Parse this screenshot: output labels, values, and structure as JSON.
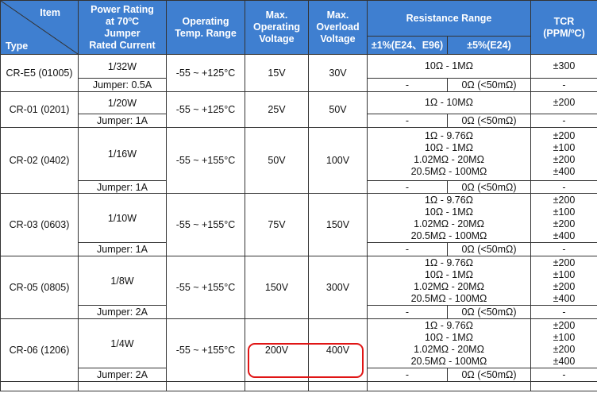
{
  "headers": {
    "item": "Item",
    "type": "Type",
    "power": [
      "Power Rating",
      "at 70ºC",
      "Jumper",
      "Rated Current"
    ],
    "temp": [
      "Operating",
      "Temp. Range"
    ],
    "max_op": [
      "Max.",
      "Operating",
      "Voltage"
    ],
    "max_ov": [
      "Max.",
      "Overload",
      "Voltage"
    ],
    "resistance": "Resistance Range",
    "res1": "±1%(E24、E96)",
    "res5": "±5%(E24)",
    "tcr": [
      "TCR",
      "(PPM/ºC)"
    ]
  },
  "rows": [
    {
      "type": "CR-E5 (01005)",
      "power": "1/32W",
      "jumper": "Jumper: 0.5A",
      "temp": "-55 ~ +125°C",
      "op": "15V",
      "ov": "30V",
      "range": [
        "10Ω - 1MΩ"
      ],
      "tcr": [
        "±300"
      ],
      "j1": "-",
      "j5": "0Ω (<50mΩ)",
      "jt": "-"
    },
    {
      "type": "CR-01 (0201)",
      "power": "1/20W",
      "jumper": "Jumper: 1A",
      "temp": "-55 ~ +125°C",
      "op": "25V",
      "ov": "50V",
      "range": [
        "1Ω - 10MΩ"
      ],
      "tcr": [
        "±200"
      ],
      "j1": "-",
      "j5": "0Ω (<50mΩ)",
      "jt": "-"
    },
    {
      "type": "CR-02 (0402)",
      "power": "1/16W",
      "jumper": "Jumper: 1A",
      "temp": "-55 ~ +155°C",
      "op": "50V",
      "ov": "100V",
      "range": [
        "1Ω - 9.76Ω",
        "10Ω - 1MΩ",
        "1.02MΩ - 20MΩ",
        "20.5MΩ - 100MΩ"
      ],
      "tcr": [
        "±200",
        "±100",
        "±200",
        "±400"
      ],
      "j1": "-",
      "j5": "0Ω (<50mΩ)",
      "jt": "-"
    },
    {
      "type": "CR-03 (0603)",
      "power": "1/10W",
      "jumper": "Jumper: 1A",
      "temp": "-55 ~ +155°C",
      "op": "75V",
      "ov": "150V",
      "range": [
        "1Ω - 9.76Ω",
        "10Ω - 1MΩ",
        "1.02MΩ - 20MΩ",
        "20.5MΩ - 100MΩ"
      ],
      "tcr": [
        "±200",
        "±100",
        "±200",
        "±400"
      ],
      "j1": "-",
      "j5": "0Ω (<50mΩ)",
      "jt": "-"
    },
    {
      "type": "CR-05 (0805)",
      "power": "1/8W",
      "jumper": "Jumper: 2A",
      "temp": "-55 ~ +155°C",
      "op": "150V",
      "ov": "300V",
      "range": [
        "1Ω - 9.76Ω",
        "10Ω - 1MΩ",
        "1.02MΩ - 20MΩ",
        "20.5MΩ - 100MΩ"
      ],
      "tcr": [
        "±200",
        "±100",
        "±200",
        "±400"
      ],
      "j1": "-",
      "j5": "0Ω (<50mΩ)",
      "jt": "-"
    },
    {
      "type": "CR-06 (1206)",
      "power": "1/4W",
      "jumper": "Jumper: 2A",
      "temp": "-55 ~ +155°C",
      "op": "200V",
      "ov": "400V",
      "range": [
        "1Ω - 9.76Ω",
        "10Ω - 1MΩ",
        "1.02MΩ - 20MΩ",
        "20.5MΩ - 100MΩ"
      ],
      "tcr": [
        "±200",
        "±100",
        "±200",
        "±400"
      ],
      "j1": "-",
      "j5": "0Ω (<50mΩ)",
      "jt": "-"
    }
  ]
}
